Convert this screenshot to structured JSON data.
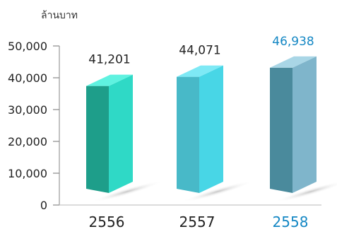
{
  "chart_data": {
    "type": "bar",
    "unit_label": "ล้านบาท",
    "categories": [
      "2556",
      "2557",
      "2558"
    ],
    "values": [
      41201,
      44071,
      46938
    ],
    "data_labels": [
      "41,201",
      "44,071",
      "46,938"
    ],
    "ylim": [
      0,
      50000
    ],
    "yticks": [
      0,
      10000,
      20000,
      30000,
      40000,
      50000
    ],
    "ytick_labels": [
      "0",
      "10,000",
      "20,000",
      "30,000",
      "40,000",
      "50,000"
    ],
    "grid": false,
    "bar_style": "3d",
    "bar_colors": [
      {
        "front": "#1e9e8a",
        "side": "#2fd9c6",
        "top": "#5ff2e0"
      },
      {
        "front": "#48b9c8",
        "side": "#48d6e6",
        "top": "#7ee9f5"
      },
      {
        "front": "#4a8a9c",
        "side": "#7fb5cb",
        "top": "#a9d6e6"
      }
    ],
    "label_colors": [
      "#222222",
      "#222222",
      "#1487c4"
    ],
    "highlight_category": "2558"
  }
}
